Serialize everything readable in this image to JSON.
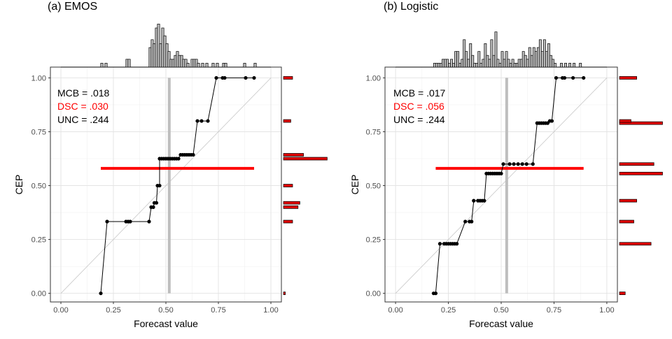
{
  "chart_data": [
    {
      "type": "reliability-diagram",
      "title": "(a) EMOS",
      "xlabel": "Forecast value",
      "ylabel": "CEP",
      "xlim": [
        -0.05,
        1.05
      ],
      "ylim": [
        -0.04,
        1.05
      ],
      "xticks": [
        "0.00",
        "0.25",
        "0.50",
        "0.75",
        "1.00"
      ],
      "yticks": [
        "0.00",
        "0.25",
        "0.50",
        "0.75",
        "1.00"
      ],
      "grid": true,
      "stats": [
        {
          "label": "MCB = .018",
          "color": "#000000"
        },
        {
          "label": "DSC = .030",
          "color": "#ff0000"
        },
        {
          "label": "UNC = .244",
          "color": "#000000"
        }
      ],
      "reference_line": {
        "x": 0.516,
        "color": "#bebebe"
      },
      "mean_line": {
        "y": 0.58,
        "x": [
          0.19,
          0.92
        ],
        "color": "#ff0000"
      },
      "points": [
        [
          0.19,
          0.0
        ],
        [
          0.22,
          0.333
        ],
        [
          0.31,
          0.333
        ],
        [
          0.32,
          0.333
        ],
        [
          0.33,
          0.333
        ],
        [
          0.42,
          0.333
        ],
        [
          0.43,
          0.4
        ],
        [
          0.44,
          0.4
        ],
        [
          0.445,
          0.42
        ],
        [
          0.455,
          0.42
        ],
        [
          0.46,
          0.5
        ],
        [
          0.47,
          0.5
        ],
        [
          0.47,
          0.625
        ],
        [
          0.48,
          0.625
        ],
        [
          0.49,
          0.625
        ],
        [
          0.5,
          0.625
        ],
        [
          0.51,
          0.625
        ],
        [
          0.52,
          0.625
        ],
        [
          0.53,
          0.625
        ],
        [
          0.54,
          0.625
        ],
        [
          0.55,
          0.625
        ],
        [
          0.56,
          0.625
        ],
        [
          0.57,
          0.643
        ],
        [
          0.58,
          0.643
        ],
        [
          0.59,
          0.643
        ],
        [
          0.6,
          0.643
        ],
        [
          0.61,
          0.643
        ],
        [
          0.62,
          0.643
        ],
        [
          0.63,
          0.643
        ],
        [
          0.65,
          0.8
        ],
        [
          0.67,
          0.8
        ],
        [
          0.7,
          0.8
        ],
        [
          0.74,
          1.0
        ],
        [
          0.77,
          1.0
        ],
        [
          0.78,
          1.0
        ],
        [
          0.88,
          1.0
        ],
        [
          0.92,
          1.0
        ]
      ],
      "x_histogram": {
        "bin_width": 0.0111,
        "bins": [
          {
            "x": 0.195,
            "h": 1
          },
          {
            "x": 0.215,
            "h": 1
          },
          {
            "x": 0.315,
            "h": 2
          },
          {
            "x": 0.325,
            "h": 2
          },
          {
            "x": 0.425,
            "h": 5
          },
          {
            "x": 0.435,
            "h": 7
          },
          {
            "x": 0.445,
            "h": 6
          },
          {
            "x": 0.455,
            "h": 10
          },
          {
            "x": 0.465,
            "h": 11
          },
          {
            "x": 0.475,
            "h": 6
          },
          {
            "x": 0.485,
            "h": 10
          },
          {
            "x": 0.495,
            "h": 8
          },
          {
            "x": 0.505,
            "h": 6
          },
          {
            "x": 0.515,
            "h": 4
          },
          {
            "x": 0.525,
            "h": 2
          },
          {
            "x": 0.535,
            "h": 2
          },
          {
            "x": 0.545,
            "h": 3
          },
          {
            "x": 0.555,
            "h": 4
          },
          {
            "x": 0.565,
            "h": 3
          },
          {
            "x": 0.575,
            "h": 3
          },
          {
            "x": 0.585,
            "h": 2
          },
          {
            "x": 0.595,
            "h": 2
          },
          {
            "x": 0.605,
            "h": 1
          },
          {
            "x": 0.625,
            "h": 2
          },
          {
            "x": 0.635,
            "h": 2
          },
          {
            "x": 0.645,
            "h": 2
          },
          {
            "x": 0.655,
            "h": 1
          },
          {
            "x": 0.675,
            "h": 1
          },
          {
            "x": 0.695,
            "h": 1
          },
          {
            "x": 0.725,
            "h": 1
          },
          {
            "x": 0.745,
            "h": 1
          },
          {
            "x": 0.775,
            "h": 1
          },
          {
            "x": 0.785,
            "h": 1
          },
          {
            "x": 0.875,
            "h": 1
          },
          {
            "x": 0.925,
            "h": 1
          }
        ]
      },
      "y_histogram": [
        {
          "y": 0.0,
          "w": 1
        },
        {
          "y": 0.333,
          "w": 5
        },
        {
          "y": 0.4,
          "w": 8
        },
        {
          "y": 0.42,
          "w": 9
        },
        {
          "y": 0.5,
          "w": 5
        },
        {
          "y": 0.625,
          "w": 24
        },
        {
          "y": 0.643,
          "w": 11
        },
        {
          "y": 0.8,
          "w": 4
        },
        {
          "y": 1.0,
          "w": 5
        }
      ]
    },
    {
      "type": "reliability-diagram",
      "title": "(b) Logistic",
      "xlabel": "Forecast value",
      "ylabel": "CEP",
      "xlim": [
        -0.05,
        1.05
      ],
      "ylim": [
        -0.04,
        1.05
      ],
      "xticks": [
        "0.00",
        "0.25",
        "0.50",
        "0.75",
        "1.00"
      ],
      "yticks": [
        "0.00",
        "0.25",
        "0.50",
        "0.75",
        "1.00"
      ],
      "grid": true,
      "stats": [
        {
          "label": "MCB = .017",
          "color": "#000000"
        },
        {
          "label": "DSC = .056",
          "color": "#ff0000"
        },
        {
          "label": "UNC = .244",
          "color": "#000000"
        }
      ],
      "reference_line": {
        "x": 0.526,
        "color": "#bebebe"
      },
      "mean_line": {
        "y": 0.58,
        "x": [
          0.19,
          0.89
        ],
        "color": "#ff0000"
      },
      "points": [
        [
          0.18,
          0.0
        ],
        [
          0.19,
          0.0
        ],
        [
          0.21,
          0.23
        ],
        [
          0.23,
          0.23
        ],
        [
          0.24,
          0.23
        ],
        [
          0.25,
          0.23
        ],
        [
          0.26,
          0.23
        ],
        [
          0.27,
          0.23
        ],
        [
          0.28,
          0.23
        ],
        [
          0.29,
          0.23
        ],
        [
          0.33,
          0.333
        ],
        [
          0.35,
          0.333
        ],
        [
          0.36,
          0.333
        ],
        [
          0.37,
          0.43
        ],
        [
          0.39,
          0.43
        ],
        [
          0.4,
          0.43
        ],
        [
          0.41,
          0.43
        ],
        [
          0.42,
          0.43
        ],
        [
          0.43,
          0.556
        ],
        [
          0.44,
          0.556
        ],
        [
          0.45,
          0.556
        ],
        [
          0.46,
          0.556
        ],
        [
          0.47,
          0.556
        ],
        [
          0.48,
          0.556
        ],
        [
          0.49,
          0.556
        ],
        [
          0.5,
          0.556
        ],
        [
          0.51,
          0.6
        ],
        [
          0.54,
          0.6
        ],
        [
          0.56,
          0.6
        ],
        [
          0.58,
          0.6
        ],
        [
          0.6,
          0.6
        ],
        [
          0.62,
          0.6
        ],
        [
          0.65,
          0.6
        ],
        [
          0.67,
          0.79
        ],
        [
          0.68,
          0.79
        ],
        [
          0.69,
          0.79
        ],
        [
          0.7,
          0.79
        ],
        [
          0.71,
          0.79
        ],
        [
          0.72,
          0.79
        ],
        [
          0.73,
          0.8
        ],
        [
          0.74,
          0.8
        ],
        [
          0.76,
          1.0
        ],
        [
          0.79,
          1.0
        ],
        [
          0.8,
          1.0
        ],
        [
          0.84,
          1.0
        ],
        [
          0.89,
          1.0
        ]
      ],
      "x_histogram": {
        "bin_width": 0.0105,
        "bins": [
          {
            "x": 0.185,
            "h": 1
          },
          {
            "x": 0.195,
            "h": 1
          },
          {
            "x": 0.205,
            "h": 1
          },
          {
            "x": 0.215,
            "h": 1
          },
          {
            "x": 0.225,
            "h": 2
          },
          {
            "x": 0.235,
            "h": 2
          },
          {
            "x": 0.245,
            "h": 2
          },
          {
            "x": 0.255,
            "h": 1
          },
          {
            "x": 0.265,
            "h": 2
          },
          {
            "x": 0.275,
            "h": 1
          },
          {
            "x": 0.285,
            "h": 4
          },
          {
            "x": 0.295,
            "h": 4
          },
          {
            "x": 0.305,
            "h": 1
          },
          {
            "x": 0.315,
            "h": 2
          },
          {
            "x": 0.325,
            "h": 7
          },
          {
            "x": 0.335,
            "h": 4
          },
          {
            "x": 0.345,
            "h": 2
          },
          {
            "x": 0.355,
            "h": 6
          },
          {
            "x": 0.365,
            "h": 3
          },
          {
            "x": 0.375,
            "h": 1
          },
          {
            "x": 0.385,
            "h": 1
          },
          {
            "x": 0.395,
            "h": 4
          },
          {
            "x": 0.405,
            "h": 1
          },
          {
            "x": 0.415,
            "h": 2
          },
          {
            "x": 0.425,
            "h": 6
          },
          {
            "x": 0.435,
            "h": 3
          },
          {
            "x": 0.445,
            "h": 2
          },
          {
            "x": 0.455,
            "h": 7
          },
          {
            "x": 0.465,
            "h": 3
          },
          {
            "x": 0.475,
            "h": 9
          },
          {
            "x": 0.485,
            "h": 2
          },
          {
            "x": 0.495,
            "h": 1
          },
          {
            "x": 0.505,
            "h": 4
          },
          {
            "x": 0.515,
            "h": 2
          },
          {
            "x": 0.525,
            "h": 4
          },
          {
            "x": 0.535,
            "h": 2
          },
          {
            "x": 0.545,
            "h": 1
          },
          {
            "x": 0.555,
            "h": 2
          },
          {
            "x": 0.565,
            "h": 1
          },
          {
            "x": 0.575,
            "h": 1
          },
          {
            "x": 0.585,
            "h": 2
          },
          {
            "x": 0.595,
            "h": 2
          },
          {
            "x": 0.605,
            "h": 4
          },
          {
            "x": 0.615,
            "h": 3
          },
          {
            "x": 0.625,
            "h": 2
          },
          {
            "x": 0.635,
            "h": 5
          },
          {
            "x": 0.645,
            "h": 3
          },
          {
            "x": 0.655,
            "h": 5
          },
          {
            "x": 0.665,
            "h": 4
          },
          {
            "x": 0.675,
            "h": 5
          },
          {
            "x": 0.685,
            "h": 7
          },
          {
            "x": 0.695,
            "h": 4
          },
          {
            "x": 0.705,
            "h": 7
          },
          {
            "x": 0.715,
            "h": 4
          },
          {
            "x": 0.725,
            "h": 6
          },
          {
            "x": 0.735,
            "h": 3
          },
          {
            "x": 0.745,
            "h": 2
          },
          {
            "x": 0.755,
            "h": 1
          },
          {
            "x": 0.785,
            "h": 1
          },
          {
            "x": 0.805,
            "h": 1
          },
          {
            "x": 0.825,
            "h": 1
          },
          {
            "x": 0.845,
            "h": 1
          },
          {
            "x": 0.875,
            "h": 1
          }
        ]
      },
      "y_histogram": [
        {
          "y": 0.0,
          "w": 2
        },
        {
          "y": 0.23,
          "w": 11
        },
        {
          "y": 0.333,
          "w": 5
        },
        {
          "y": 0.43,
          "w": 6
        },
        {
          "y": 0.556,
          "w": 15
        },
        {
          "y": 0.6,
          "w": 12
        },
        {
          "y": 0.79,
          "w": 15
        },
        {
          "y": 0.8,
          "w": 4
        },
        {
          "y": 1.0,
          "w": 6
        }
      ]
    }
  ]
}
